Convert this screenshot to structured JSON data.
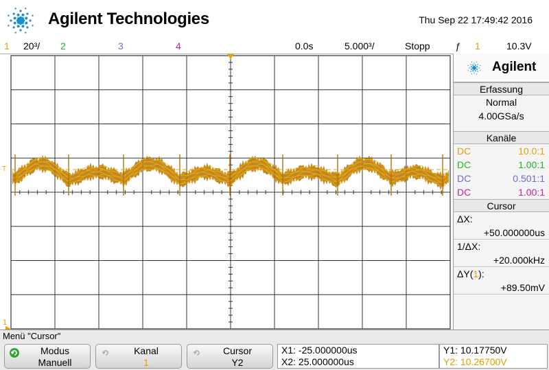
{
  "header": {
    "brand": "Agilent Technologies",
    "datetime": "Thu Sep 22 17:49:42 2016"
  },
  "statusbar": {
    "ch1_num": "1",
    "ch1_scale": "20³/",
    "ch2_num": "2",
    "ch3_num": "3",
    "ch4_num": "4",
    "time_offset": "0.0s",
    "time_scale": "5.000³/",
    "run_state": "Stopp",
    "trigger_icon": "ƒ",
    "trigger_channel": "1",
    "trigger_level": "10.3V"
  },
  "colors": {
    "ch1": "#e8a000",
    "ch2": "#22b322",
    "ch3": "#6a6ad8",
    "ch4": "#cc1e9e",
    "trace": "#b57200",
    "grid": "#333333",
    "cursor_y2": "#d8a000"
  },
  "panel": {
    "brand": "Agilent",
    "acq_title": "Erfassung",
    "acq_mode": "Normal",
    "acq_rate": "4.00GSa/s",
    "channels_title": "Kanäle",
    "channels": [
      {
        "coupling": "DC",
        "probe": "10.0:1"
      },
      {
        "coupling": "DC",
        "probe": "1.00:1"
      },
      {
        "coupling": "DC",
        "probe": "0.501:1"
      },
      {
        "coupling": "DC",
        "probe": "1.00:1"
      }
    ],
    "cursor_title": "Cursor",
    "dx_label": "ΔX:",
    "dx_value": "+50.000000us",
    "inv_dx_label": "1/ΔX:",
    "inv_dx_value": "+20.000kHz",
    "dy_label_pre": "ΔY(",
    "dy_label_ch": "1",
    "dy_label_post": "):",
    "dy_value": "+89.50mV"
  },
  "menu": {
    "title": "Menü \"Cursor\"",
    "softkeys": [
      {
        "label": "Modus",
        "value": "Manuell"
      },
      {
        "label": "Kanal",
        "value": "1"
      },
      {
        "label": "Cursor",
        "value": "Y2"
      }
    ],
    "x1": "X1: -25.000000us",
    "x2": "X2: 25.000000us",
    "y1": "Y1: 10.17750V",
    "y2": "Y2: 10.26700V"
  },
  "scope": {
    "divisions_x": 10,
    "divisions_y": 8,
    "ch1_marker": "1",
    "trigger_marker": "T"
  }
}
